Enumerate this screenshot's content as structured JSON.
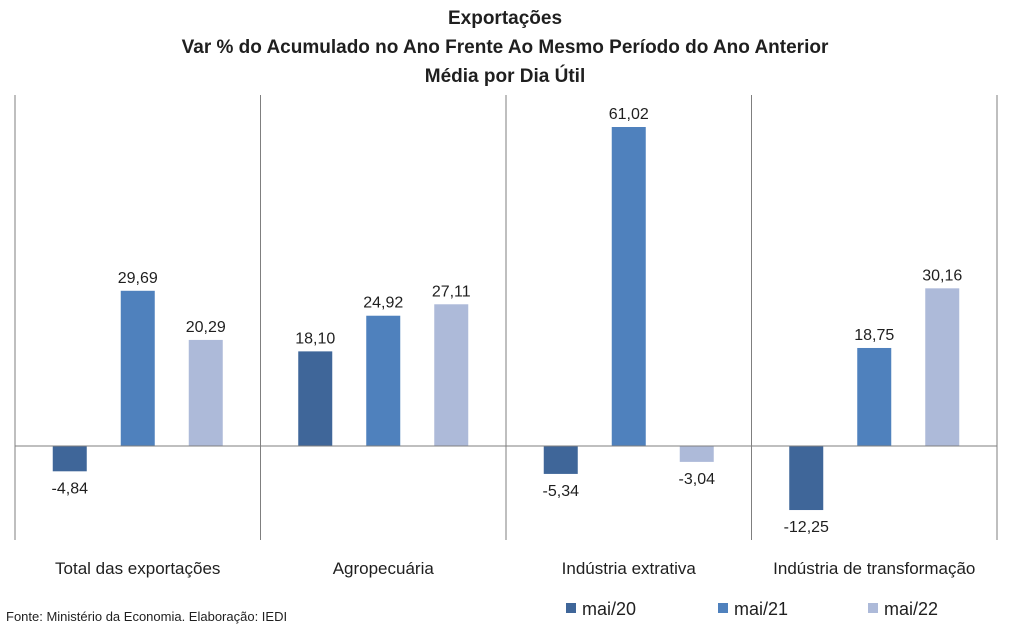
{
  "chart_data": {
    "type": "bar",
    "title": "Exportações",
    "subtitle": [
      "Var % do Acumulado no Ano Frente Ao Mesmo Período do Ano Anterior",
      "Média por Dia Útil"
    ],
    "categories": [
      "Total das exportações",
      "Agropecuária",
      "Indústria extrativa",
      "Indústria de transformação"
    ],
    "series": [
      {
        "name": "mai/20",
        "color": "#3f6699",
        "values": [
          -4.84,
          18.1,
          -5.34,
          -12.25
        ]
      },
      {
        "name": "mai/21",
        "color": "#4f81bd",
        "values": [
          29.69,
          24.92,
          61.02,
          18.75
        ]
      },
      {
        "name": "mai/22",
        "color": "#adbad9",
        "values": [
          20.29,
          27.11,
          -3.04,
          30.16
        ]
      }
    ],
    "data_labels": [
      [
        "-4,84",
        "18,10",
        "-5,34",
        "-12,25"
      ],
      [
        "29,69",
        "24,92",
        "61,02",
        "18,75"
      ],
      [
        "20,29",
        "27,11",
        "-3,04",
        "30,16"
      ]
    ],
    "legend_position": "bottom-right",
    "gridlines": false
  },
  "source": "Fonte: Ministério da Economia. Elaboração: IEDI"
}
